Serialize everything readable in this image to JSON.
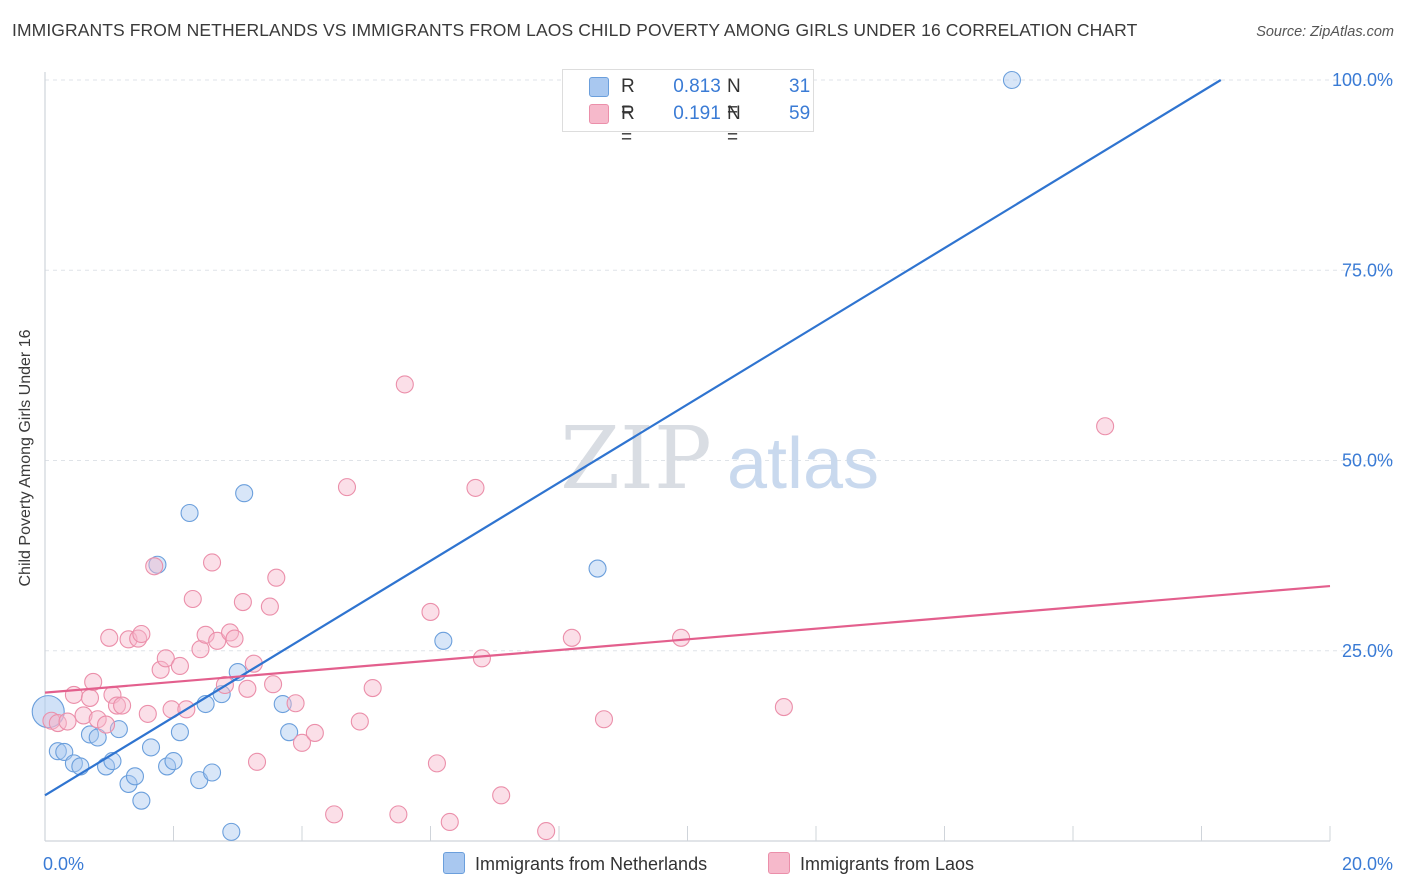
{
  "header": {
    "title": "IMMIGRANTS FROM NETHERLANDS VS IMMIGRANTS FROM LAOS CHILD POVERTY AMONG GIRLS UNDER 16 CORRELATION CHART",
    "source": "Source: ZipAtlas.com"
  },
  "watermark": {
    "zip": "ZIP",
    "atlas": "atlas"
  },
  "legend": {
    "rows": [
      {
        "r_key": "R =",
        "r_value": "0.813",
        "n_key": "N =",
        "n_value": "31",
        "color": "#a9c8f0"
      },
      {
        "r_key": "R =",
        "r_value": "0.191",
        "n_key": "N =",
        "n_value": "59",
        "color": "#f6b9cb"
      }
    ]
  },
  "chart_data": {
    "type": "scatter",
    "title": "IMMIGRANTS FROM NETHERLANDS VS IMMIGRANTS FROM LAOS CHILD POVERTY AMONG GIRLS UNDER 16 CORRELATION CHART",
    "xlabel": "",
    "ylabel": "Child Poverty Among Girls Under 16",
    "xlim": [
      0,
      20
    ],
    "ylim": [
      0,
      102
    ],
    "x_tick_labels": [
      "0.0%",
      "20.0%"
    ],
    "y_tick_labels": [
      "25.0%",
      "50.0%",
      "75.0%",
      "100.0%"
    ],
    "y_ticks": [
      25,
      50,
      75,
      100
    ],
    "grid": true,
    "legend_position": "top-center",
    "series": [
      {
        "name": "Immigrants from Netherlands",
        "color": "#a9c8f0",
        "stroke": "#6b9fdc",
        "line_color": "#2f74d0",
        "trend": {
          "x": [
            0,
            18.3
          ],
          "y": [
            6.0,
            100.0
          ]
        },
        "points": [
          {
            "x": 0.05,
            "y": 17.0,
            "big": true
          },
          {
            "x": 0.2,
            "y": 11.8
          },
          {
            "x": 0.3,
            "y": 11.7
          },
          {
            "x": 0.45,
            "y": 10.2
          },
          {
            "x": 0.55,
            "y": 9.8
          },
          {
            "x": 0.7,
            "y": 14.0
          },
          {
            "x": 0.82,
            "y": 13.6
          },
          {
            "x": 0.95,
            "y": 9.8
          },
          {
            "x": 1.05,
            "y": 10.5
          },
          {
            "x": 1.15,
            "y": 14.7
          },
          {
            "x": 1.3,
            "y": 7.5
          },
          {
            "x": 1.4,
            "y": 8.5
          },
          {
            "x": 1.5,
            "y": 5.3
          },
          {
            "x": 1.65,
            "y": 12.3
          },
          {
            "x": 1.75,
            "y": 36.3
          },
          {
            "x": 1.9,
            "y": 9.8
          },
          {
            "x": 2.0,
            "y": 10.5
          },
          {
            "x": 2.1,
            "y": 14.3
          },
          {
            "x": 2.25,
            "y": 43.1
          },
          {
            "x": 2.4,
            "y": 8.0
          },
          {
            "x": 2.5,
            "y": 18.0
          },
          {
            "x": 2.6,
            "y": 9.0
          },
          {
            "x": 2.75,
            "y": 19.3
          },
          {
            "x": 2.9,
            "y": 1.2
          },
          {
            "x": 3.0,
            "y": 22.2
          },
          {
            "x": 3.1,
            "y": 45.7
          },
          {
            "x": 3.7,
            "y": 18.0
          },
          {
            "x": 3.8,
            "y": 14.3
          },
          {
            "x": 6.2,
            "y": 26.3
          },
          {
            "x": 8.6,
            "y": 35.8
          },
          {
            "x": 15.05,
            "y": 100.0
          }
        ]
      },
      {
        "name": "Immigrants from Laos",
        "color": "#f6b9cb",
        "stroke": "#eb8faa",
        "line_color": "#e35f8d",
        "trend": {
          "x": [
            0,
            20
          ],
          "y": [
            19.5,
            33.5
          ]
        },
        "points": [
          {
            "x": 0.1,
            "y": 15.8
          },
          {
            "x": 0.2,
            "y": 15.5
          },
          {
            "x": 0.35,
            "y": 15.7
          },
          {
            "x": 0.45,
            "y": 19.2
          },
          {
            "x": 0.6,
            "y": 16.5
          },
          {
            "x": 0.7,
            "y": 18.8
          },
          {
            "x": 0.75,
            "y": 20.9
          },
          {
            "x": 0.82,
            "y": 16.0
          },
          {
            "x": 0.95,
            "y": 15.3
          },
          {
            "x": 1.0,
            "y": 26.7
          },
          {
            "x": 1.05,
            "y": 19.2
          },
          {
            "x": 1.12,
            "y": 17.8
          },
          {
            "x": 1.2,
            "y": 17.8
          },
          {
            "x": 1.3,
            "y": 26.5
          },
          {
            "x": 1.45,
            "y": 26.6
          },
          {
            "x": 1.5,
            "y": 27.2
          },
          {
            "x": 1.6,
            "y": 16.7
          },
          {
            "x": 1.7,
            "y": 36.1
          },
          {
            "x": 1.8,
            "y": 22.5
          },
          {
            "x": 1.88,
            "y": 24.0
          },
          {
            "x": 1.97,
            "y": 17.3
          },
          {
            "x": 2.1,
            "y": 23.0
          },
          {
            "x": 2.2,
            "y": 17.3
          },
          {
            "x": 2.3,
            "y": 31.8
          },
          {
            "x": 2.42,
            "y": 25.2
          },
          {
            "x": 2.5,
            "y": 27.1
          },
          {
            "x": 2.6,
            "y": 36.6
          },
          {
            "x": 2.68,
            "y": 26.3
          },
          {
            "x": 2.8,
            "y": 20.5
          },
          {
            "x": 2.88,
            "y": 27.4
          },
          {
            "x": 2.95,
            "y": 26.6
          },
          {
            "x": 3.08,
            "y": 31.4
          },
          {
            "x": 3.15,
            "y": 20.0
          },
          {
            "x": 3.25,
            "y": 23.3
          },
          {
            "x": 3.3,
            "y": 10.4
          },
          {
            "x": 3.5,
            "y": 30.8
          },
          {
            "x": 3.55,
            "y": 20.6
          },
          {
            "x": 3.6,
            "y": 34.6
          },
          {
            "x": 3.9,
            "y": 18.1
          },
          {
            "x": 4.0,
            "y": 12.9
          },
          {
            "x": 4.2,
            "y": 14.2
          },
          {
            "x": 4.5,
            "y": 3.5
          },
          {
            "x": 4.7,
            "y": 46.5
          },
          {
            "x": 4.9,
            "y": 15.7
          },
          {
            "x": 5.1,
            "y": 20.1
          },
          {
            "x": 5.6,
            "y": 60.0
          },
          {
            "x": 5.5,
            "y": 3.5
          },
          {
            "x": 6.0,
            "y": 30.1
          },
          {
            "x": 6.1,
            "y": 10.2
          },
          {
            "x": 6.3,
            "y": 2.5
          },
          {
            "x": 6.7,
            "y": 46.4
          },
          {
            "x": 6.8,
            "y": 24.0
          },
          {
            "x": 7.1,
            "y": 6.0
          },
          {
            "x": 7.8,
            "y": 1.3
          },
          {
            "x": 8.2,
            "y": 26.7
          },
          {
            "x": 8.7,
            "y": 16.0
          },
          {
            "x": 9.9,
            "y": 26.7
          },
          {
            "x": 11.5,
            "y": 17.6
          },
          {
            "x": 16.5,
            "y": 54.5
          }
        ]
      }
    ]
  }
}
